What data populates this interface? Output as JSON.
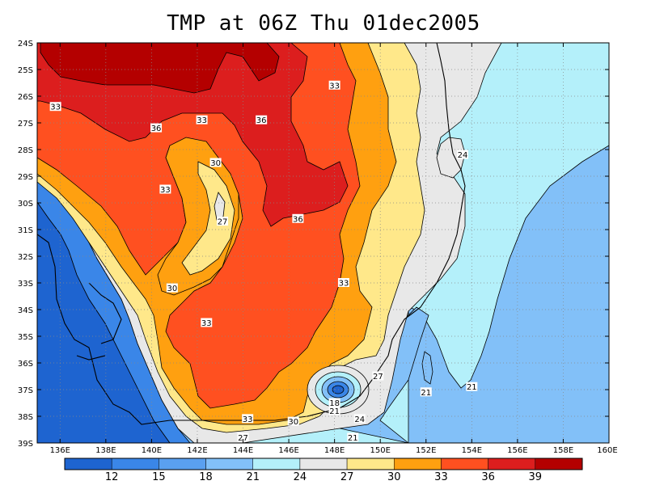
{
  "chart_data": {
    "type": "contour",
    "title": "TMP at 06Z Thu 01dec2005",
    "xlim": [
      135,
      160
    ],
    "ylim": [
      -39,
      -24
    ],
    "x_tick_labels": [
      "136E",
      "138E",
      "140E",
      "142E",
      "144E",
      "146E",
      "148E",
      "150E",
      "152E",
      "154E",
      "156E",
      "158E",
      "160E"
    ],
    "x_tick_values": [
      136,
      138,
      140,
      142,
      144,
      146,
      148,
      150,
      152,
      154,
      156,
      158,
      160
    ],
    "y_tick_labels": [
      "24S",
      "25S",
      "26S",
      "27S",
      "28S",
      "29S",
      "30S",
      "31S",
      "32S",
      "33S",
      "34S",
      "35S",
      "36S",
      "37S",
      "38S",
      "39S"
    ],
    "y_tick_values": [
      -24,
      -25,
      -26,
      -27,
      -28,
      -29,
      -30,
      -31,
      -32,
      -33,
      -34,
      -35,
      -36,
      -37,
      -38,
      -39
    ],
    "grid": true,
    "colorbar": {
      "labels": [
        "12",
        "15",
        "18",
        "21",
        "24",
        "27",
        "30",
        "33",
        "36",
        "39"
      ],
      "colors": [
        "#1e64d0",
        "#3a86e8",
        "#5aa0f0",
        "#82c0f8",
        "#b4f0fa",
        "#e8e8e8",
        "#ffe88a",
        "#ffa010",
        "#ff5020",
        "#dc1e1e",
        "#b40000"
      ]
    },
    "contour_labels": [
      {
        "text": "33",
        "lon": 135.8,
        "lat": -26.4
      },
      {
        "text": "36",
        "lon": 140.2,
        "lat": -27.2
      },
      {
        "text": "33",
        "lon": 142.2,
        "lat": -26.9
      },
      {
        "text": "36",
        "lon": 144.8,
        "lat": -26.9
      },
      {
        "text": "33",
        "lon": 148.0,
        "lat": -25.6
      },
      {
        "text": "30",
        "lon": 142.8,
        "lat": -28.5
      },
      {
        "text": "33",
        "lon": 140.6,
        "lat": -29.5
      },
      {
        "text": "27",
        "lon": 143.1,
        "lat": -30.7
      },
      {
        "text": "36",
        "lon": 146.4,
        "lat": -30.6
      },
      {
        "text": "24",
        "lon": 153.6,
        "lat": -28.2
      },
      {
        "text": "30",
        "lon": 140.9,
        "lat": -33.2
      },
      {
        "text": "33",
        "lon": 148.4,
        "lat": -33.0
      },
      {
        "text": "33",
        "lon": 142.4,
        "lat": -34.5
      },
      {
        "text": "27",
        "lon": 149.9,
        "lat": -36.5
      },
      {
        "text": "21",
        "lon": 152.0,
        "lat": -37.1
      },
      {
        "text": "21",
        "lon": 154.0,
        "lat": -36.9
      },
      {
        "text": "18",
        "lon": 148.0,
        "lat": -37.5
      },
      {
        "text": "21",
        "lon": 148.0,
        "lat": -37.8
      },
      {
        "text": "24",
        "lon": 149.1,
        "lat": -38.1
      },
      {
        "text": "21",
        "lon": 148.8,
        "lat": -38.8
      },
      {
        "text": "33",
        "lon": 144.2,
        "lat": -38.1
      },
      {
        "text": "30",
        "lon": 146.2,
        "lat": -38.2
      },
      {
        "text": "27",
        "lon": 144.0,
        "lat": -38.8
      }
    ]
  }
}
